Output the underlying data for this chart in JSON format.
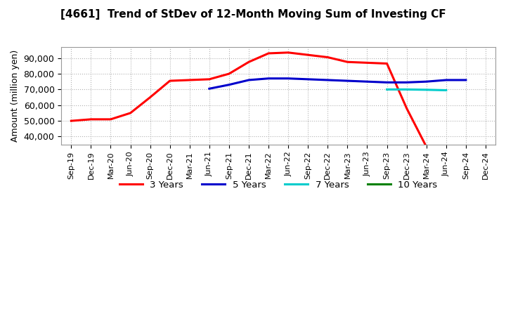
{
  "title": "[4661]  Trend of StDev of 12-Month Moving Sum of Investing CF",
  "ylabel": "Amount (million yen)",
  "background_color": "#ffffff",
  "grid_color": "#aaaaaa",
  "ylim": [
    35000,
    97000
  ],
  "yticks": [
    40000,
    50000,
    60000,
    70000,
    80000,
    90000
  ],
  "x_labels": [
    "Sep-19",
    "Dec-19",
    "Mar-20",
    "Jun-20",
    "Sep-20",
    "Dec-20",
    "Mar-21",
    "Jun-21",
    "Sep-21",
    "Dec-21",
    "Mar-22",
    "Jun-22",
    "Sep-22",
    "Dec-22",
    "Mar-23",
    "Jun-23",
    "Sep-23",
    "Dec-23",
    "Mar-24",
    "Jun-24",
    "Sep-24",
    "Dec-24"
  ],
  "series_3y": {
    "label": "3 Years",
    "color": "#ff0000",
    "x": [
      0,
      1,
      2,
      3,
      4,
      5,
      6,
      7,
      8,
      9,
      10,
      11,
      12,
      13,
      14,
      15,
      16,
      17,
      18
    ],
    "y": [
      50000,
      51000,
      51000,
      55000,
      65000,
      75500,
      76000,
      76500,
      80000,
      87500,
      93000,
      93500,
      92000,
      90500,
      87500,
      87000,
      86500,
      58000,
      33500
    ]
  },
  "series_5y": {
    "label": "5 Years",
    "color": "#0000cc",
    "x": [
      7,
      8,
      9,
      10,
      11,
      12,
      13,
      14,
      15,
      16,
      17,
      18,
      19,
      20
    ],
    "y": [
      70500,
      73000,
      76000,
      77000,
      77000,
      76500,
      76000,
      75500,
      75000,
      74500,
      74500,
      75000,
      76000,
      76000
    ]
  },
  "series_7y": {
    "label": "7 Years",
    "color": "#00cccc",
    "x": [
      16,
      17,
      18,
      19
    ],
    "y": [
      70000,
      70000,
      69800,
      69500
    ]
  },
  "series_10y": {
    "label": "10 Years",
    "color": "#008000",
    "x": [],
    "y": []
  },
  "legend_labels": [
    "3 Years",
    "5 Years",
    "7 Years",
    "10 Years"
  ],
  "legend_colors": [
    "#ff0000",
    "#0000cc",
    "#00cccc",
    "#008000"
  ]
}
